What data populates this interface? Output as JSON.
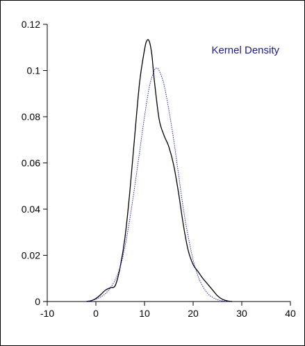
{
  "chart_data": {
    "type": "line",
    "title": "",
    "xlabel": "",
    "ylabel": "",
    "xlim": [
      -10,
      40
    ],
    "ylim": [
      0,
      0.12
    ],
    "x_ticks": [
      -10,
      0,
      10,
      20,
      30,
      40
    ],
    "x_tick_labels": [
      "-10",
      "0",
      "10",
      "20",
      "30",
      "40"
    ],
    "y_ticks": [
      0,
      0.02,
      0.04,
      0.06,
      0.08,
      0.1,
      0.12
    ],
    "y_tick_labels": [
      "0",
      "0.02",
      "0.04",
      "0.06",
      "0.08",
      "0.1",
      "0.12"
    ],
    "grid": false,
    "legend_position": "top-right",
    "annotation": "Kernel Density",
    "colors": {
      "kernel": "#000000",
      "normal": "#2020c0",
      "annotation": "#1a1a8c"
    },
    "series": [
      {
        "name": "Kernel Density",
        "style": "solid",
        "x": [
          -2,
          -1,
          0,
          1,
          2,
          3,
          4,
          5,
          6,
          7,
          8,
          9,
          10,
          10.5,
          11,
          11.5,
          12,
          13,
          14,
          15,
          16,
          17,
          18,
          19,
          20,
          21,
          22,
          23,
          24,
          25,
          26,
          27,
          28
        ],
        "y": [
          0,
          0.0003,
          0.0013,
          0.003,
          0.005,
          0.006,
          0.007,
          0.015,
          0.028,
          0.048,
          0.072,
          0.095,
          0.109,
          0.113,
          0.1125,
          0.107,
          0.096,
          0.079,
          0.072,
          0.067,
          0.059,
          0.047,
          0.033,
          0.022,
          0.016,
          0.013,
          0.01,
          0.0075,
          0.005,
          0.0025,
          0.001,
          0.0003,
          0
        ]
      },
      {
        "name": "",
        "style": "dotted",
        "x": [
          -2,
          -1,
          0,
          1,
          2,
          3,
          4,
          5,
          6,
          7,
          8,
          9,
          10,
          11,
          12,
          12.5,
          13,
          14,
          15,
          16,
          17,
          18,
          19,
          20,
          21,
          22,
          23,
          24,
          25,
          26,
          27,
          28
        ],
        "y": [
          0,
          0.0005,
          0.001,
          0.002,
          0.0035,
          0.006,
          0.0095,
          0.015,
          0.024,
          0.036,
          0.05,
          0.065,
          0.08,
          0.093,
          0.1,
          0.101,
          0.1,
          0.094,
          0.083,
          0.07,
          0.055,
          0.04,
          0.028,
          0.018,
          0.011,
          0.0065,
          0.0035,
          0.0018,
          0.0008,
          0.0003,
          0.0001,
          0
        ]
      }
    ]
  }
}
